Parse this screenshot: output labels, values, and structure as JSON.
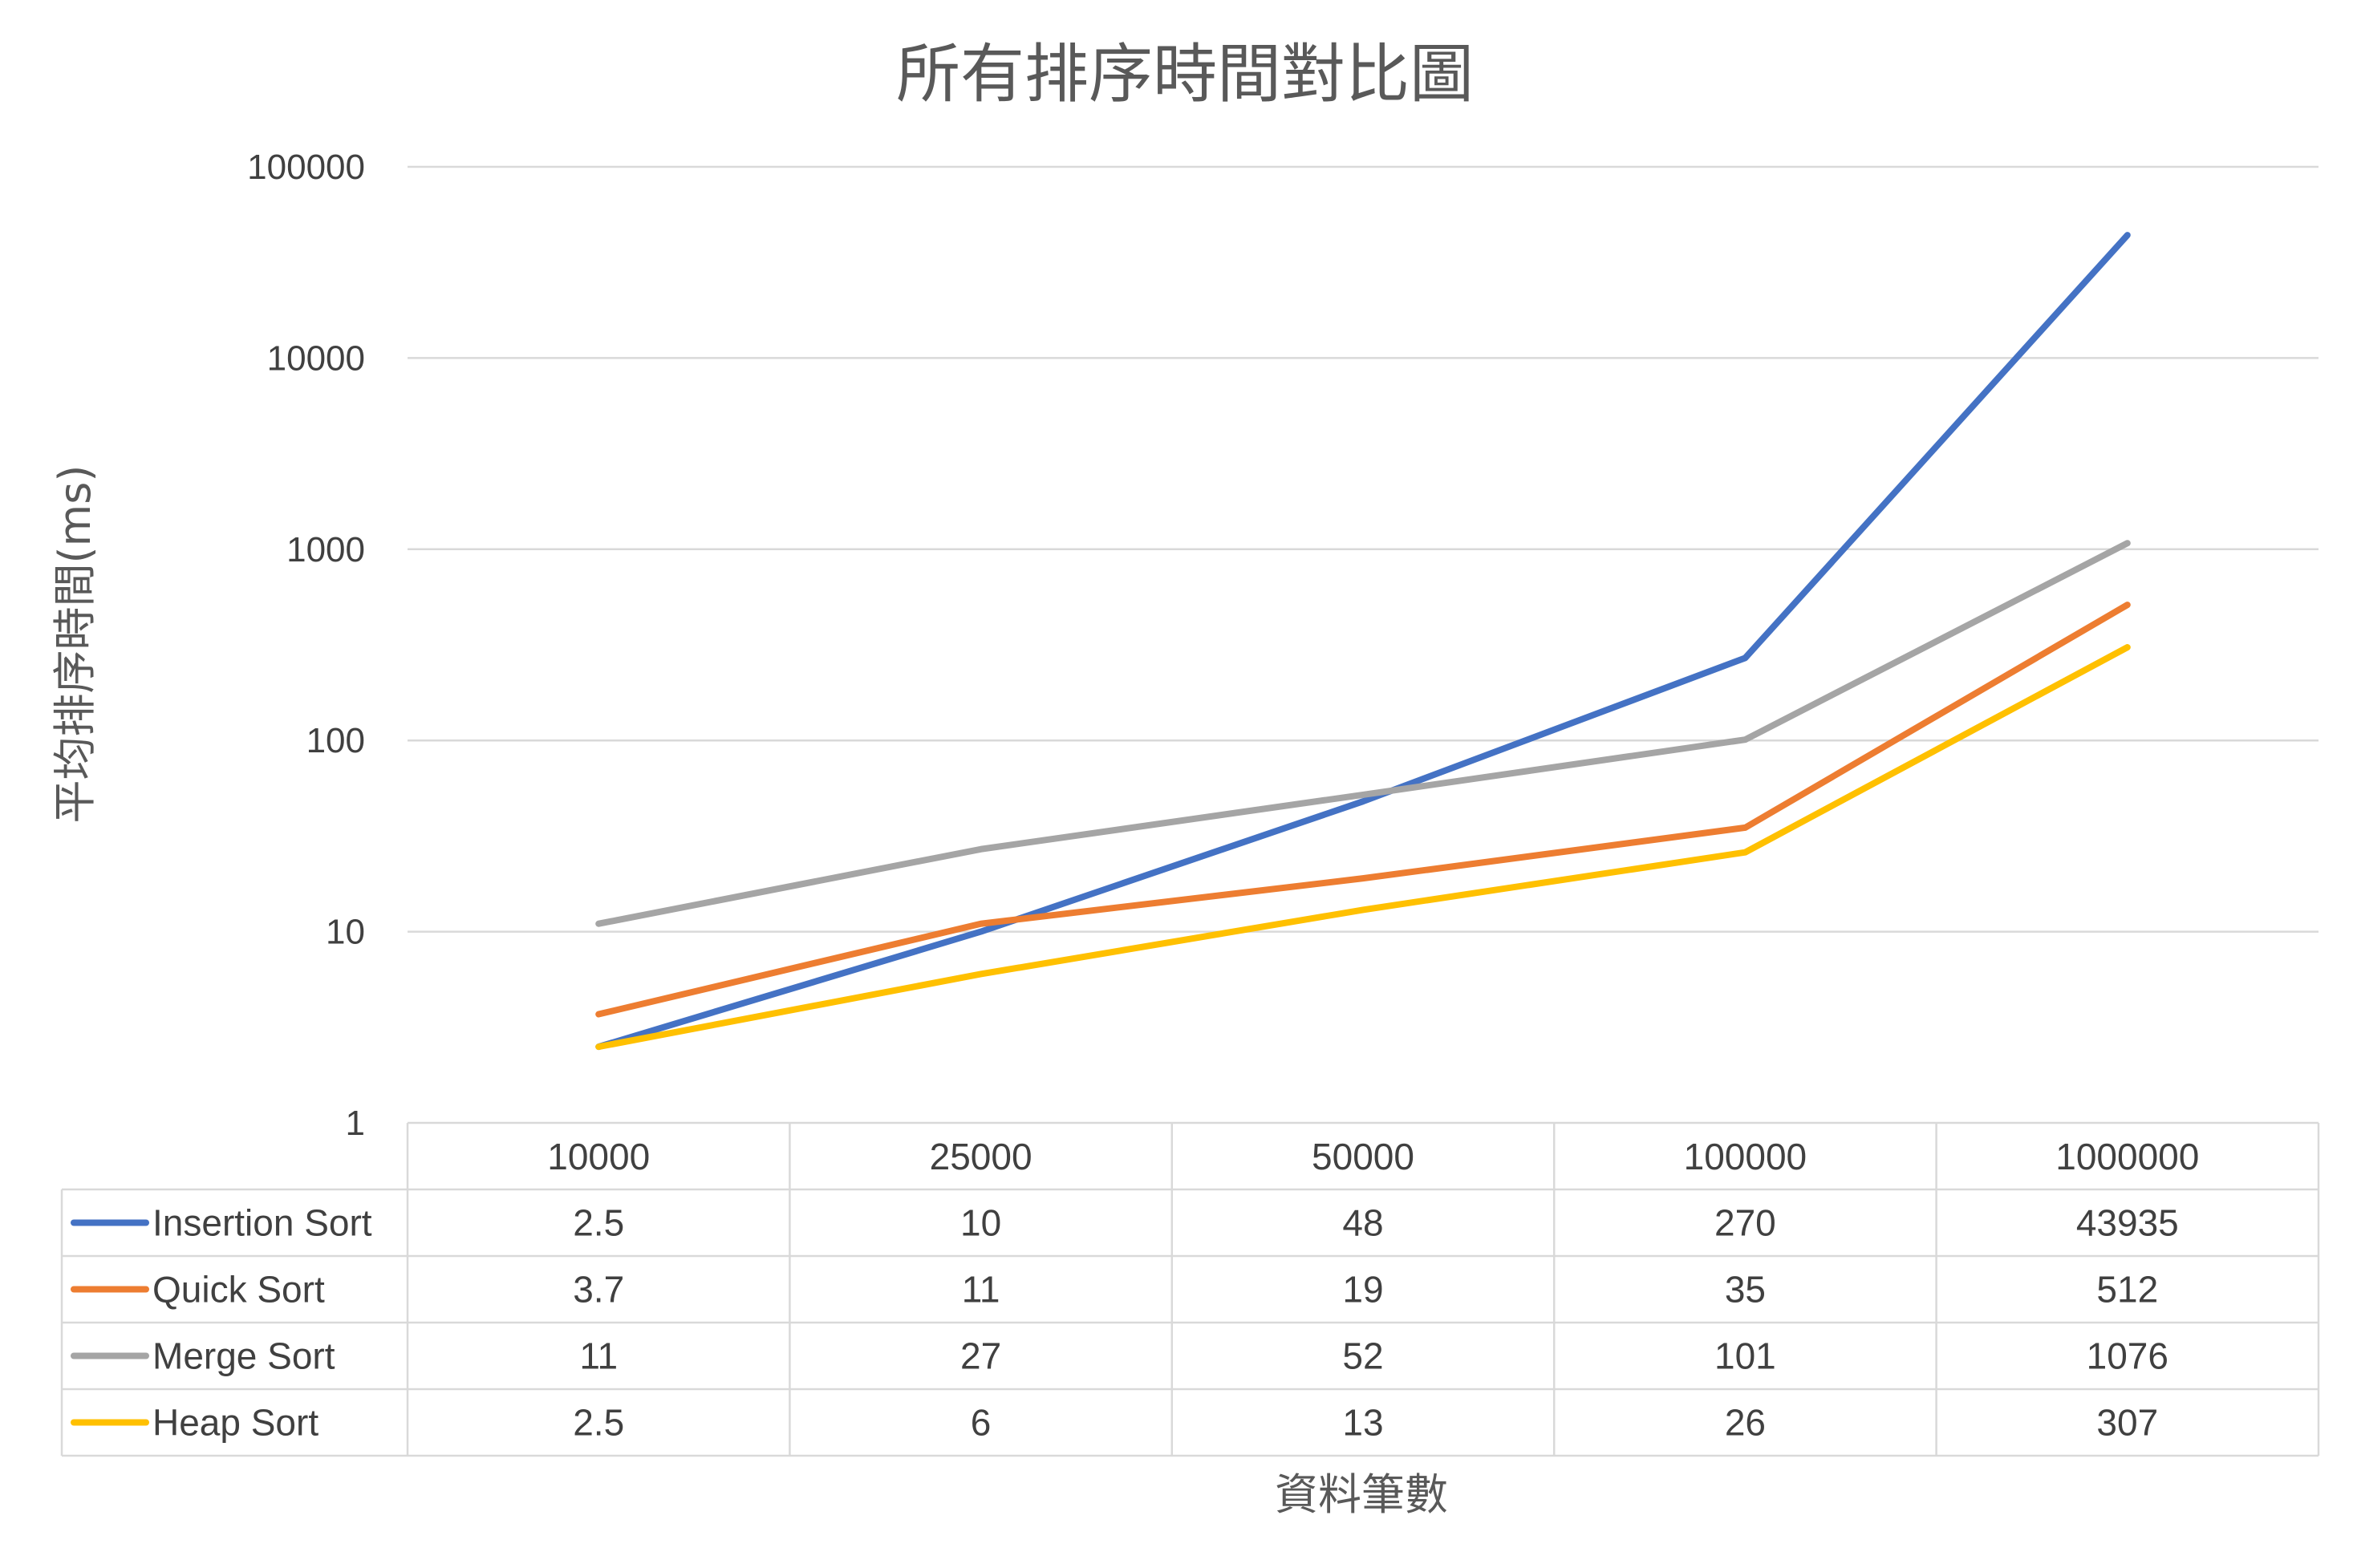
{
  "chart_data": {
    "type": "line",
    "title": "所有排序時間對比圖",
    "xlabel": "資料筆數",
    "ylabel": "平均排序時間(ms)",
    "y_scale": "log",
    "ylim": [
      1,
      100000
    ],
    "y_ticks": [
      "1",
      "10",
      "100",
      "1000",
      "10000",
      "100000"
    ],
    "grid": true,
    "legend": "data-table",
    "categories": [
      "10000",
      "25000",
      "50000",
      "100000",
      "1000000"
    ],
    "series": [
      {
        "name": "Insertion Sort",
        "color": "#4472c4",
        "values": [
          2.5,
          10,
          48,
          270,
          43935
        ],
        "labels": [
          "2.5",
          "10",
          "48",
          "270",
          "43935"
        ]
      },
      {
        "name": "Quick Sort",
        "color": "#ed7d31",
        "values": [
          3.7,
          11,
          19,
          35,
          512
        ],
        "labels": [
          "3.7",
          "11",
          "19",
          "35",
          "512"
        ]
      },
      {
        "name": "Merge Sort",
        "color": "#a5a5a5",
        "values": [
          11,
          27,
          52,
          101,
          1076
        ],
        "labels": [
          "11",
          "27",
          "52",
          "101",
          "1076"
        ]
      },
      {
        "name": "Heap Sort",
        "color": "#ffc000",
        "values": [
          2.5,
          6,
          13,
          26,
          307
        ],
        "labels": [
          "2.5",
          "6",
          "13",
          "26",
          "307"
        ]
      }
    ]
  }
}
